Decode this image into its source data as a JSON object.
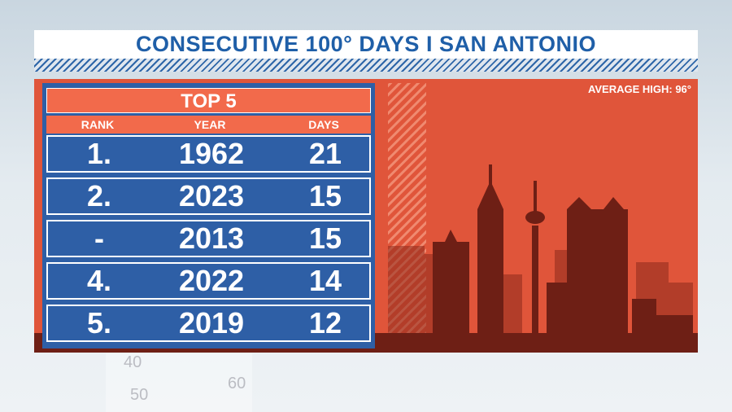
{
  "header": {
    "title": "CONSECUTIVE 100° DAYS I SAN ANTONIO"
  },
  "panel": {
    "note": "AVERAGE HIGH: 96°"
  },
  "table": {
    "title": "TOP 5",
    "columns": [
      "RANK",
      "YEAR",
      "DAYS"
    ],
    "rows": [
      [
        "1.",
        "1962",
        "21"
      ],
      [
        "2.",
        "2023",
        "15"
      ],
      [
        "-",
        "2013",
        "15"
      ],
      [
        "4.",
        "2022",
        "14"
      ],
      [
        "5.",
        "2019",
        "12"
      ]
    ]
  },
  "background": {
    "thermometer_labels": [
      "40",
      "50",
      "60"
    ]
  }
}
